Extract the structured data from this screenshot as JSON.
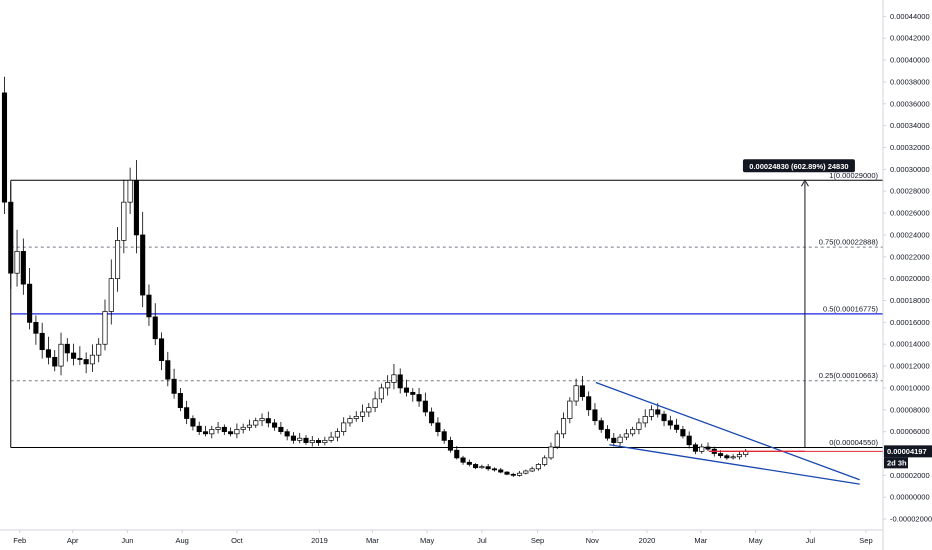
{
  "chart_data": {
    "type": "candlestick",
    "y_scale": {
      "min": -3e-05,
      "max": 0.000455
    },
    "x_scale": {
      "start": "2018-01-10",
      "end": "2020-09-20"
    },
    "y_ticks": [
      "0.00044000",
      "0.00042000",
      "0.00040000",
      "0.00038000",
      "0.00036000",
      "0.00034000",
      "0.00032000",
      "0.00030000",
      "0.00028000",
      "0.00026000",
      "0.00024000",
      "0.00022000",
      "0.00020000",
      "0.00018000",
      "0.00016000",
      "0.00014000",
      "0.00012000",
      "0.00010000",
      "0.00008000",
      "0.00006000",
      "0.00004000",
      "0.00002000",
      "0.00000000",
      "-0.00002000"
    ],
    "x_ticks": [
      {
        "label": "Feb",
        "date": "2018-02-01"
      },
      {
        "label": "Apr",
        "date": "2018-04-01"
      },
      {
        "label": "Jun",
        "date": "2018-06-01"
      },
      {
        "label": "Aug",
        "date": "2018-08-01"
      },
      {
        "label": "Oct",
        "date": "2018-10-01"
      },
      {
        "label": "2019",
        "date": "2019-01-01"
      },
      {
        "label": "Mar",
        "date": "2019-03-01"
      },
      {
        "label": "May",
        "date": "2019-05-01"
      },
      {
        "label": "Jul",
        "date": "2019-07-01"
      },
      {
        "label": "Sep",
        "date": "2019-09-01"
      },
      {
        "label": "Nov",
        "date": "2019-11-01"
      },
      {
        "label": "2020",
        "date": "2020-01-01"
      },
      {
        "label": "Mar",
        "date": "2020-03-01"
      },
      {
        "label": "May",
        "date": "2020-05-01"
      },
      {
        "label": "Jul",
        "date": "2020-07-01"
      },
      {
        "label": "Sep",
        "date": "2020-09-01"
      }
    ],
    "closes": [
      0.00027,
      0.000205,
      0.000225,
      0.000195,
      0.00016,
      0.00015,
      0.000135,
      0.000128,
      0.00012,
      0.00014,
      0.000132,
      0.000127,
      0.000126,
      0.000122,
      0.00013,
      0.00014,
      0.00017,
      0.0002,
      0.000235,
      0.00027,
      0.00029,
      0.00024,
      0.000185,
      0.000165,
      0.000145,
      0.000125,
      0.000108,
      9.5e-05,
      8.2e-05,
      7.2e-05,
      6.5e-05,
      6e-05,
      5.8e-05,
      6.2e-05,
      6.4e-05,
      6e-05,
      5.8e-05,
      6.2e-05,
      6.4e-05,
      6.6e-05,
      7e-05,
      7.2e-05,
      6.8e-05,
      6.4e-05,
      6e-05,
      5.6e-05,
      5.2e-05,
      5.4e-05,
      5e-05,
      5.2e-05,
      5e-05,
      5.2e-05,
      5.5e-05,
      6e-05,
      6.8e-05,
      7.2e-05,
      7.4e-05,
      7.8e-05,
      8.2e-05,
      9e-05,
      0.0001,
      0.000105,
      0.000112,
      0.0001,
      9.6e-05,
      9.4e-05,
      8.8e-05,
      7.8e-05,
      6.8e-05,
      6e-05,
      5.2e-05,
      4.3e-05,
      3.6e-05,
      3.2e-05,
      3e-05,
      2.7e-05,
      2.8e-05,
      2.6e-05,
      2.5e-05,
      2.3e-05,
      2.1e-05,
      2e-05,
      2.2e-05,
      2.4e-05,
      2.6e-05,
      3e-05,
      3.6e-05,
      4.6e-05,
      5.8e-05,
      7.2e-05,
      8.8e-05,
      0.000102,
      9.2e-05,
      8e-05,
      7e-05,
      6.2e-05,
      5.4e-05,
      5e-05,
      5.5e-05,
      5.8e-05,
      6.2e-05,
      6.8e-05,
      7.4e-05,
      8e-05,
      7.6e-05,
      7e-05,
      6.6e-05,
      6.2e-05,
      5.6e-05,
      4.8e-05,
      4.2e-05,
      4.6e-05,
      4.4e-05,
      4e-05,
      3.8e-05,
      3.6e-05,
      3.7e-05,
      3.9e-05,
      4.2e-05
    ],
    "last_price_label": "0.00004197",
    "last_price": 4.197e-05,
    "countdown_label": "2d 3h",
    "measure_label": "0.00024830 (602.89%) 24830",
    "fib_levels": [
      {
        "ratio": "1",
        "value": 0.00029,
        "label": "1(0.00029000)",
        "style": "solid",
        "color": "#000000"
      },
      {
        "ratio": "0.75",
        "value": 0.00022888,
        "label": "0.75(0.00022888)",
        "style": "dashed",
        "color": "#787b86"
      },
      {
        "ratio": "0.5",
        "value": 0.00016775,
        "label": "0.5(0.00016775)",
        "style": "solid",
        "color": "#1a22e0"
      },
      {
        "ratio": "0.25",
        "value": 0.00010663,
        "label": "0.25(0.00010663)",
        "style": "dashed",
        "color": "#787b86"
      },
      {
        "ratio": "0",
        "value": 4.55e-05,
        "label": "0(0.00004550)",
        "style": "solid",
        "color": "#000000"
      }
    ],
    "trendlines": [
      {
        "from": {
          "date": "2019-11-05",
          "value": 0.000105
        },
        "to": {
          "date": "2020-08-25",
          "value": 1.6e-05
        }
      },
      {
        "from": {
          "date": "2019-11-20",
          "value": 4.8e-05
        },
        "to": {
          "date": "2020-08-25",
          "value": 1.2e-05
        }
      }
    ],
    "support_line": {
      "from": {
        "date": "2020-03-10",
        "value": 4.2e-05
      },
      "to": {
        "date": "2020-06-25",
        "value": 4.2e-05
      }
    },
    "colors": {
      "up": "#ffffff",
      "down": "#000000",
      "wick": "#000000",
      "trend": "#1848b0",
      "support": "#e0283a",
      "badge": "#131722",
      "axis_text": "#131722"
    }
  }
}
